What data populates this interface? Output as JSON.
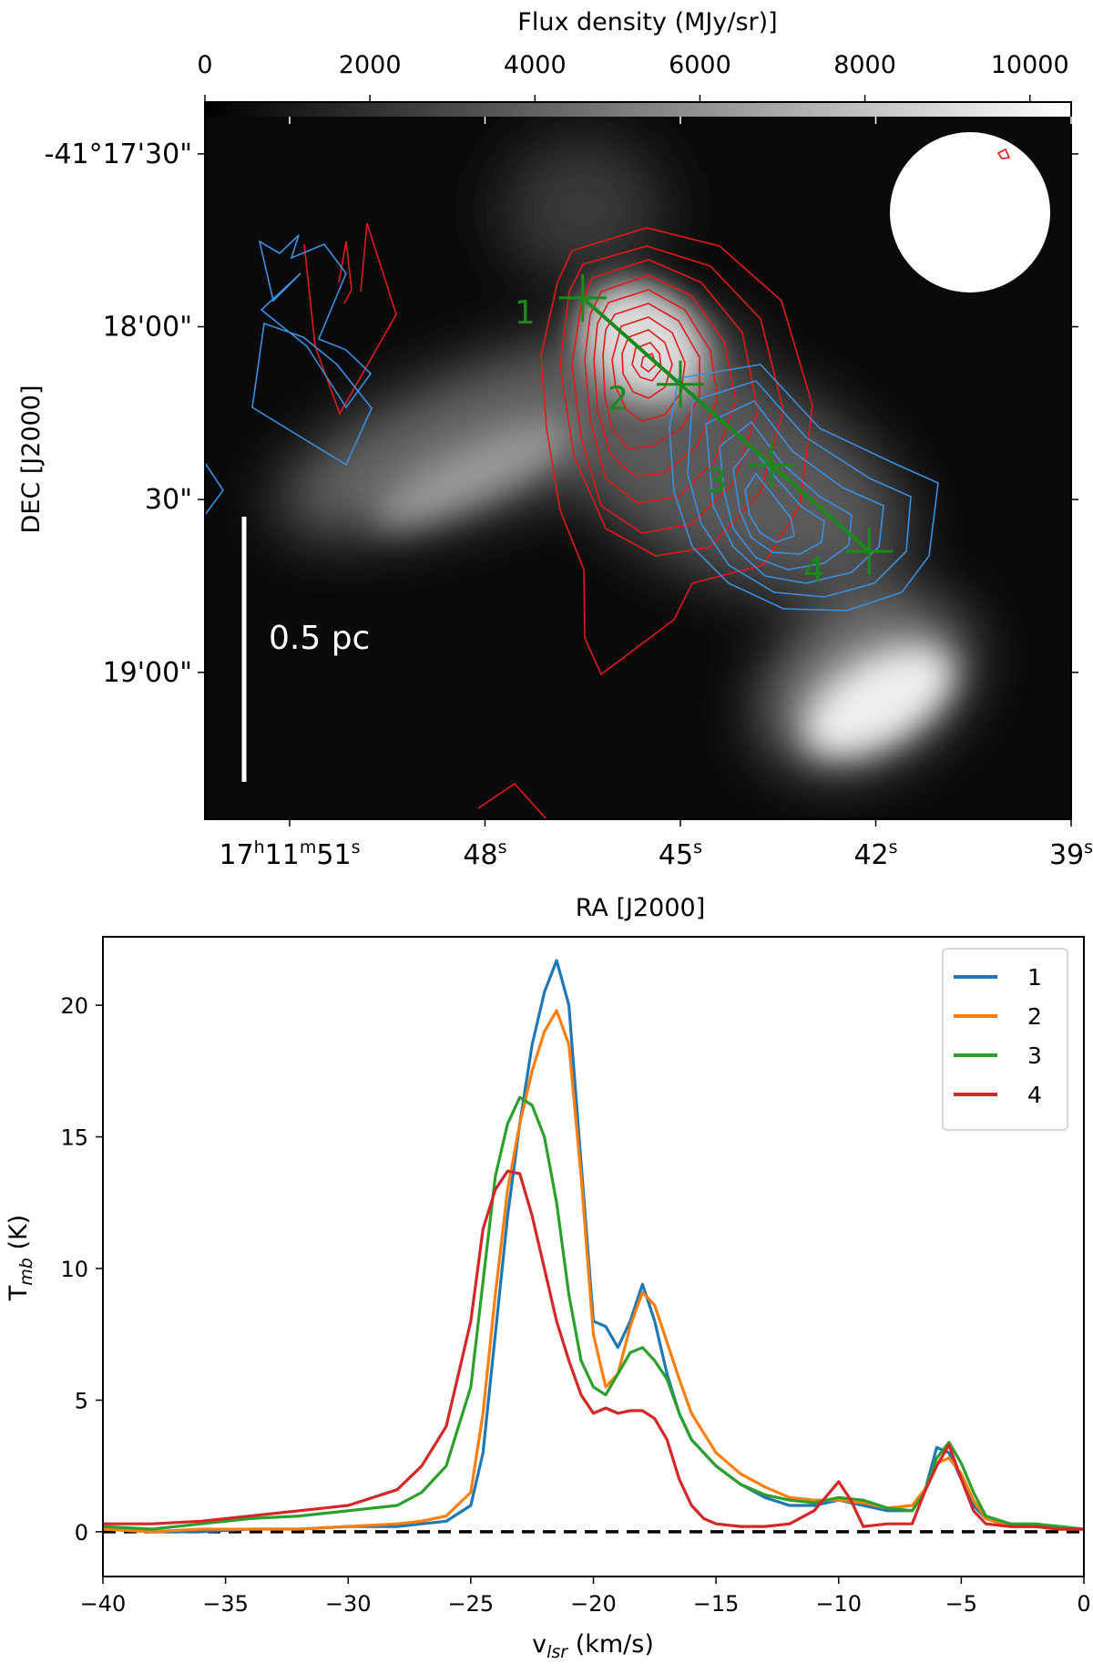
{
  "chart_data": [
    {
      "type": "heatmap",
      "colorbar": {
        "label": "Flux density (MJy/sr)]",
        "ticks": [
          0,
          2000,
          4000,
          6000,
          8000,
          10000
        ],
        "tick_labels": [
          "0",
          "2000",
          "4000",
          "6000",
          "8000",
          "10000"
        ],
        "range": [
          0,
          10500
        ],
        "colormap": "gray"
      },
      "xlabel": "RA [J2000]",
      "ylabel": "DEC [J2000]",
      "ra_ticks": [
        {
          "value_s": 51,
          "main": "17",
          "h": "h",
          "m_val": "11",
          "m": "m",
          "s_val": "51",
          "s": "s"
        },
        {
          "value_s": 48,
          "main": "48",
          "s": "s"
        },
        {
          "value_s": 45,
          "main": "45",
          "s": "s"
        },
        {
          "value_s": 42,
          "main": "42",
          "s": "s"
        },
        {
          "value_s": 39,
          "main": "39",
          "s": "s"
        }
      ],
      "dec_ticks": [
        {
          "value_arcsec": 1050,
          "label": "-41°17'30\""
        },
        {
          "value_arcsec": 1080,
          "label": "18'00\""
        },
        {
          "value_arcsec": 1110,
          "label": "30\""
        },
        {
          "value_arcsec": 1140,
          "label": "19'00\""
        }
      ],
      "ra_range_s": [
        39,
        52.3
      ],
      "dec_range_arcsec": [
        1041,
        1165.5
      ],
      "scalebar_label": "0.5 pc",
      "cut_points": [
        {
          "label": "1",
          "ra_s": 46.5,
          "dec_arcsec": 1075
        },
        {
          "label": "2",
          "ra_s": 45.0,
          "dec_arcsec": 1090
        },
        {
          "label": "3",
          "ra_s": 43.6,
          "dec_arcsec": 1104
        },
        {
          "label": "4",
          "ra_s": 42.1,
          "dec_arcsec": 1119
        }
      ],
      "contour_colors": {
        "red": "#e01a1a",
        "blue": "#3a8fe0",
        "cut": "#1a8a1a"
      }
    },
    {
      "type": "line",
      "xlabel_main": "v",
      "xlabel_sub": "lsr",
      "xlabel_unit": " (km/s)",
      "ylabel_main": "T",
      "ylabel_sub": "mb",
      "ylabel_unit": " (K)",
      "xlim": [
        -40,
        0
      ],
      "ylim": [
        -1.7,
        22.6
      ],
      "xticks": [
        -40,
        -35,
        -30,
        -25,
        -20,
        -15,
        -10,
        -5,
        0
      ],
      "yticks": [
        0,
        5,
        10,
        15,
        20
      ],
      "baseline": 0,
      "legend_position": "upper right",
      "series": [
        {
          "name": "1",
          "color": "#1f77b4",
          "x": [
            -40,
            -38,
            -36,
            -34,
            -32,
            -30,
            -28,
            -27,
            -26,
            -25,
            -24.5,
            -24,
            -23.5,
            -23,
            -22.5,
            -22,
            -21.5,
            -21,
            -20.5,
            -20,
            -19.5,
            -19,
            -18.5,
            -18,
            -17.5,
            -17,
            -16.5,
            -16,
            -15,
            -14,
            -13,
            -12,
            -11,
            -10,
            -9,
            -8,
            -7,
            -6.5,
            -6,
            -5.5,
            -5,
            -4.5,
            -4,
            -3,
            -2,
            -1,
            0
          ],
          "y": [
            0.1,
            0.0,
            0.0,
            0.1,
            0.1,
            0.2,
            0.2,
            0.3,
            0.4,
            1.0,
            3.0,
            7.5,
            12.0,
            15.5,
            18.5,
            20.5,
            21.7,
            20.0,
            14.0,
            8.0,
            7.8,
            7.0,
            8.0,
            9.4,
            8.0,
            6.0,
            4.5,
            3.5,
            2.5,
            1.8,
            1.3,
            1.0,
            1.0,
            1.2,
            1.0,
            0.8,
            0.8,
            1.5,
            3.2,
            3.0,
            2.0,
            1.0,
            0.5,
            0.2,
            0.2,
            0.1,
            0.1
          ]
        },
        {
          "name": "2",
          "color": "#ff7f0e",
          "x": [
            -40,
            -38,
            -36,
            -34,
            -32,
            -30,
            -28,
            -27,
            -26,
            -25,
            -24.5,
            -24,
            -23.5,
            -23,
            -22.5,
            -22,
            -21.5,
            -21,
            -20.5,
            -20,
            -19.5,
            -19,
            -18.5,
            -18,
            -17.5,
            -17,
            -16.5,
            -16,
            -15,
            -14,
            -13,
            -12,
            -11,
            -10,
            -9,
            -8,
            -7,
            -6.5,
            -6,
            -5.5,
            -5,
            -4.5,
            -4,
            -3,
            -2,
            -1,
            0
          ],
          "y": [
            0.1,
            0.0,
            0.1,
            0.1,
            0.1,
            0.2,
            0.3,
            0.4,
            0.6,
            1.5,
            4.5,
            9.0,
            13.0,
            15.5,
            17.5,
            19.0,
            19.8,
            18.5,
            13.5,
            7.5,
            5.5,
            6.0,
            7.8,
            9.1,
            8.6,
            7.2,
            5.8,
            4.5,
            3.0,
            2.2,
            1.7,
            1.3,
            1.2,
            1.2,
            1.1,
            0.9,
            1.0,
            1.6,
            2.6,
            2.8,
            2.2,
            1.2,
            0.5,
            0.2,
            0.2,
            0.1,
            0.1
          ]
        },
        {
          "name": "3",
          "color": "#2ca02c",
          "x": [
            -40,
            -38,
            -36,
            -34,
            -32,
            -30,
            -28,
            -27,
            -26,
            -25,
            -24.5,
            -24,
            -23.5,
            -23,
            -22.5,
            -22,
            -21.5,
            -21,
            -20.5,
            -20,
            -19.5,
            -19,
            -18.5,
            -18,
            -17.5,
            -17,
            -16.5,
            -16,
            -15,
            -14,
            -13,
            -12,
            -11,
            -10,
            -9,
            -8,
            -7,
            -6.5,
            -6,
            -5.5,
            -5,
            -4.5,
            -4,
            -3,
            -2,
            -1,
            0
          ],
          "y": [
            0.2,
            0.1,
            0.3,
            0.5,
            0.6,
            0.8,
            1.0,
            1.5,
            2.5,
            5.5,
            9.5,
            13.5,
            15.5,
            16.5,
            16.2,
            15.0,
            12.5,
            9.0,
            6.5,
            5.5,
            5.2,
            6.0,
            6.8,
            7.0,
            6.5,
            5.8,
            4.5,
            3.5,
            2.5,
            1.8,
            1.4,
            1.2,
            1.1,
            1.3,
            1.2,
            0.9,
            0.8,
            1.5,
            2.8,
            3.4,
            2.6,
            1.5,
            0.6,
            0.3,
            0.3,
            0.2,
            0.1
          ]
        },
        {
          "name": "4",
          "color": "#d62728",
          "x": [
            -40,
            -38,
            -36,
            -34,
            -32,
            -30,
            -28,
            -27,
            -26,
            -25,
            -24.5,
            -24,
            -23.5,
            -23,
            -22.5,
            -22,
            -21.5,
            -21,
            -20.5,
            -20,
            -19.5,
            -19,
            -18.5,
            -18,
            -17.5,
            -17,
            -16.5,
            -16,
            -15.5,
            -15,
            -14,
            -13,
            -12,
            -11,
            -10,
            -9.5,
            -9,
            -8,
            -7,
            -6.5,
            -6,
            -5.5,
            -5,
            -4.5,
            -4,
            -3,
            -2,
            -1,
            0
          ],
          "y": [
            0.3,
            0.3,
            0.4,
            0.6,
            0.8,
            1.0,
            1.6,
            2.5,
            4.0,
            8.0,
            11.5,
            13.0,
            13.7,
            13.6,
            12.0,
            10.0,
            8.0,
            6.5,
            5.2,
            4.5,
            4.7,
            4.5,
            4.6,
            4.6,
            4.3,
            3.5,
            2.0,
            1.0,
            0.5,
            0.3,
            0.2,
            0.2,
            0.3,
            0.8,
            1.9,
            1.2,
            0.2,
            0.3,
            0.3,
            1.5,
            2.5,
            3.3,
            2.0,
            0.8,
            0.3,
            0.2,
            0.2,
            0.1,
            0.1
          ]
        }
      ]
    }
  ]
}
